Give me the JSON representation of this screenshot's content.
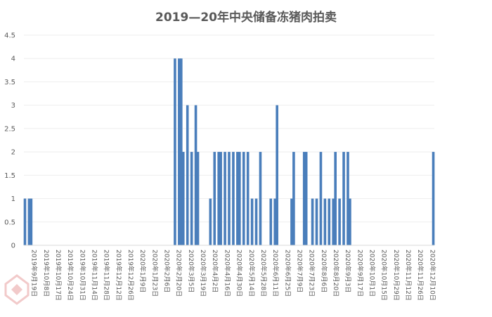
{
  "chart_data": {
    "type": "bar",
    "title": "2019—20年中央储备冻猪肉拍卖",
    "xlabel": "",
    "ylabel": "",
    "ylim": [
      0,
      4.5
    ],
    "yticks": [
      "0",
      "0.5",
      "1",
      "1.5",
      "2",
      "2.5",
      "3",
      "3.5",
      "4",
      "4.5"
    ],
    "grid": "horizontal",
    "bar_color": "#4a7ebb",
    "x_labels": [
      "2019年9月19日",
      "2019年10月8日",
      "2019年10月17日",
      "2019年10月24日",
      "2019年10月31日",
      "2019年11月14日",
      "2019年11月28日",
      "2019年12月12日",
      "2019年12月26日",
      "2020年1月9日",
      "2020年1月23日",
      "2020年2月6日",
      "2020年2月20日",
      "2020年3月5日",
      "2020年3月19日",
      "2020年4月2日",
      "2020年4月16日",
      "2020年4月30日",
      "2020年5月14日",
      "2020年5月28日",
      "2020年6月11日",
      "2020年6月25日",
      "2020年7月9日",
      "2020年7月23日",
      "2020年8月6日",
      "2020年8月20日",
      "2020年9月3日",
      "2020年9月17日",
      "2020年10月1日",
      "2020年10月15日",
      "2020年10月29日",
      "2020年11月12日",
      "2020年11月26日",
      "2020年12月10日"
    ],
    "values": [
      1,
      0,
      1,
      1,
      0,
      0,
      0,
      0,
      0,
      0,
      0,
      0,
      0,
      0,
      0,
      0,
      0,
      0,
      0,
      0,
      0,
      0,
      0,
      0,
      0,
      0,
      0,
      0,
      0,
      0,
      0,
      0,
      0,
      0,
      0,
      0,
      0,
      0,
      0,
      0,
      0,
      0,
      0,
      0,
      0,
      0,
      0,
      0,
      0,
      0,
      0,
      0,
      0,
      0,
      0,
      0,
      0,
      0,
      0,
      0,
      0,
      0,
      0,
      0,
      0,
      0,
      0,
      0,
      0,
      0,
      0,
      0,
      4,
      0,
      4,
      4,
      2,
      0,
      3,
      0,
      2,
      0,
      3,
      2,
      0,
      0,
      0,
      0,
      0,
      1,
      0,
      2,
      0,
      2,
      2,
      0,
      2,
      0,
      2,
      0,
      2,
      0,
      2,
      2,
      0,
      2,
      0,
      2,
      0,
      1,
      0,
      1,
      0,
      2,
      0,
      0,
      0,
      0,
      1,
      0,
      1,
      3,
      0,
      0,
      0,
      0,
      0,
      0,
      1,
      2,
      0,
      0,
      0,
      0,
      2,
      2,
      0,
      0,
      1,
      0,
      1,
      0,
      2,
      0,
      1,
      0,
      1,
      0,
      1,
      2,
      0,
      1,
      0,
      2,
      0,
      2,
      1,
      0,
      0,
      0,
      0,
      0,
      0,
      0,
      0,
      0,
      0,
      0,
      0,
      0,
      0,
      0,
      0,
      0,
      0,
      0,
      0,
      0,
      0,
      0,
      0,
      0,
      0,
      0,
      0,
      0,
      0,
      0,
      0,
      0,
      0,
      0,
      0,
      0,
      0,
      0,
      2
    ]
  }
}
